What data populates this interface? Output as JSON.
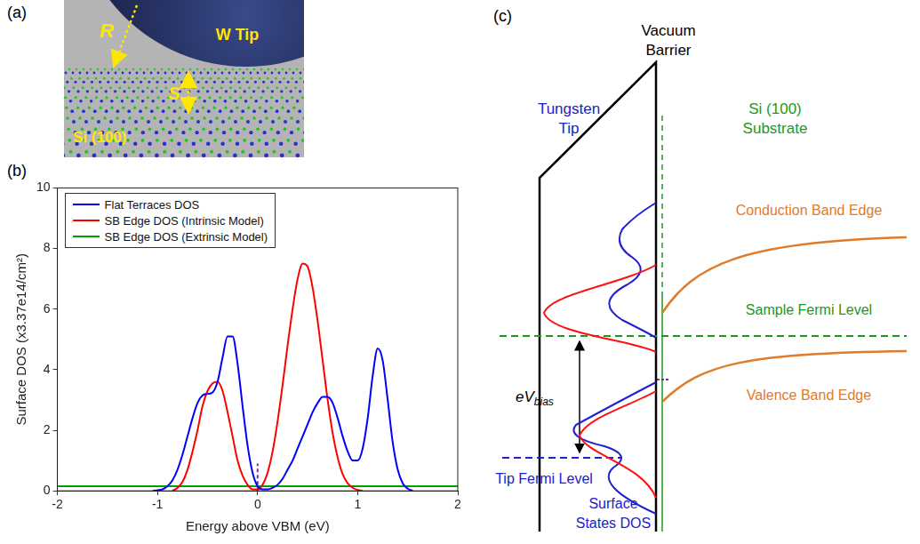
{
  "chart_data": {
    "type": "line",
    "panel_label": "(b)",
    "x_label": "Energy above VBM (eV)",
    "y_label": "Surface DOS (x3.37e14/cm²)",
    "xlim": [
      -2,
      2
    ],
    "ylim": [
      0,
      10
    ],
    "xticks": [
      -2,
      -1,
      0,
      1,
      2
    ],
    "yticks": [
      0,
      2,
      4,
      6,
      8,
      10
    ],
    "grid": false,
    "legend": "upper left",
    "series": [
      {
        "name": "Flat Terraces DOS",
        "color": "#0000ff",
        "x": [
          -1.05,
          -1.0,
          -0.95,
          -0.9,
          -0.85,
          -0.8,
          -0.75,
          -0.7,
          -0.65,
          -0.6,
          -0.55,
          -0.5,
          -0.45,
          -0.4,
          -0.35,
          -0.3,
          -0.25,
          -0.2,
          -0.15,
          -0.1,
          -0.05,
          0,
          0.05,
          0.1,
          0.15,
          0.2,
          0.25,
          0.3,
          0.35,
          0.4,
          0.45,
          0.5,
          0.55,
          0.6,
          0.65,
          0.7,
          0.75,
          0.8,
          0.85,
          0.9,
          0.95,
          1.0,
          1.05,
          1.1,
          1.15,
          1.2,
          1.25,
          1.3,
          1.35,
          1.4,
          1.45,
          1.5,
          1.55
        ],
        "values": [
          0,
          0.02,
          0.05,
          0.15,
          0.35,
          0.7,
          1.2,
          1.8,
          2.4,
          2.9,
          3.15,
          3.2,
          3.25,
          3.6,
          4.4,
          5.1,
          5.1,
          4.2,
          2.8,
          1.5,
          0.6,
          0.15,
          0.05,
          0.05,
          0.1,
          0.2,
          0.4,
          0.7,
          1.0,
          1.4,
          1.8,
          2.2,
          2.6,
          2.9,
          3.1,
          3.1,
          2.9,
          2.4,
          1.8,
          1.3,
          1.0,
          1.0,
          1.4,
          2.4,
          3.8,
          4.7,
          4.3,
          3.0,
          1.6,
          0.7,
          0.25,
          0.07,
          0
        ]
      },
      {
        "name": "SB Edge DOS (Intrinsic Model)",
        "color": "#ff0000",
        "x": [
          -0.85,
          -0.8,
          -0.75,
          -0.7,
          -0.65,
          -0.6,
          -0.55,
          -0.5,
          -0.45,
          -0.4,
          -0.35,
          -0.3,
          -0.25,
          -0.2,
          -0.15,
          -0.1,
          -0.05,
          0,
          0.05,
          0.1,
          0.15,
          0.2,
          0.25,
          0.3,
          0.35,
          0.4,
          0.45,
          0.5,
          0.55,
          0.6,
          0.65,
          0.7,
          0.75,
          0.8,
          0.85,
          0.9,
          0.95,
          1.0,
          1.05
        ],
        "values": [
          0,
          0.1,
          0.3,
          0.7,
          1.3,
          2.0,
          2.8,
          3.3,
          3.55,
          3.6,
          3.3,
          2.6,
          1.8,
          1.0,
          0.5,
          0.2,
          0.05,
          0.05,
          0.2,
          0.6,
          1.3,
          2.3,
          3.5,
          4.8,
          6.0,
          7.0,
          7.5,
          7.4,
          6.7,
          5.6,
          4.3,
          3.0,
          1.9,
          1.1,
          0.55,
          0.25,
          0.1,
          0.03,
          0
        ]
      },
      {
        "name": "SB Edge DOS (Extrinsic Model)",
        "color": "#00a000",
        "x": [
          -2,
          2
        ],
        "values": [
          0.15,
          0.15
        ]
      }
    ],
    "annotations": [
      {
        "type": "line",
        "x": [
          0,
          0
        ],
        "values": [
          0,
          0.9
        ],
        "color": "#7030a0",
        "line_style": "dashed"
      }
    ]
  },
  "panel_a": {
    "label": "(a)",
    "tip": "W Tip",
    "radius": "R",
    "separation": "S",
    "substrate": "Si (100)"
  },
  "panel_c": {
    "label": "(c)",
    "tip": [
      "Tungsten",
      "Tip"
    ],
    "barrier": [
      "Vacuum",
      "Barrier"
    ],
    "substrate": [
      "Si (100)",
      "Substrate"
    ],
    "conduction_band": "Conduction Band Edge",
    "sample_fermi": "Sample Fermi Level",
    "valence_band": "Valence Band Edge",
    "tip_fermi": "Tip Fermi Level",
    "bias": {
      "main": "eV",
      "subscript": "bias"
    },
    "dos": [
      "Surface",
      "States DOS"
    ]
  }
}
